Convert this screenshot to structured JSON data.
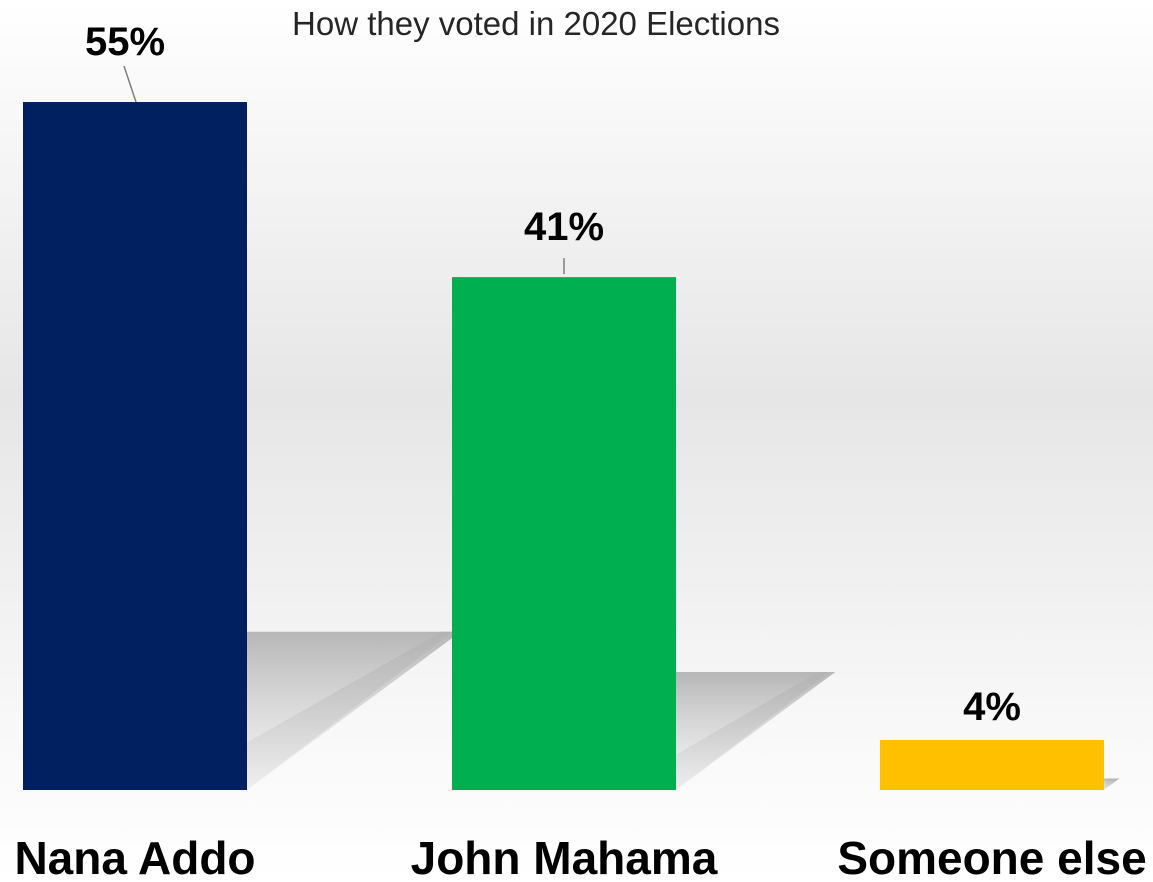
{
  "chart_data": {
    "type": "bar",
    "title": "How they voted in 2020 Elections",
    "categories": [
      "Nana Addo",
      "John Mahama",
      "Someone else"
    ],
    "values": [
      55,
      41,
      4
    ],
    "data_labels": [
      "55%",
      "41%",
      "4%"
    ],
    "colors": [
      "#002060",
      "#00B050",
      "#FFC000"
    ],
    "ylim": [
      0,
      55
    ],
    "grid": false,
    "legend": "none"
  }
}
